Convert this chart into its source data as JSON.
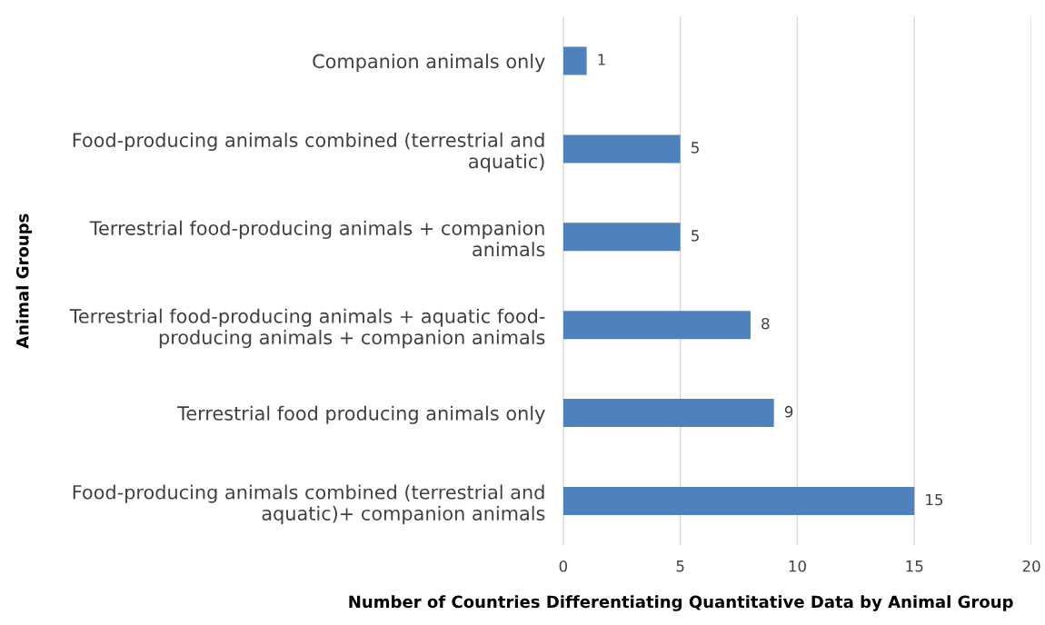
{
  "chart_data": {
    "type": "bar",
    "orientation": "horizontal",
    "xlabel": "Number of Countries Differentiating Quantitative Data by Animal Group",
    "ylabel": "Animal Groups",
    "categories": [
      "Companion animals only",
      "Food-producing animals combined (terrestrial and aquatic)",
      "Terrestrial food-producing animals + companion animals",
      "Terrestrial food-producing animals + aquatic food-producing animals + companion animals",
      "Terrestrial food producing animals only",
      "Food-producing animals combined (terrestrial and aquatic)+ companion animals"
    ],
    "values": [
      1,
      5,
      5,
      8,
      9,
      15
    ],
    "color": "#4f81bd",
    "xlim": [
      0,
      20
    ],
    "xticks": [
      0,
      5,
      10,
      15,
      20
    ],
    "grid": "x",
    "data_labels": true,
    "legend": false
  }
}
